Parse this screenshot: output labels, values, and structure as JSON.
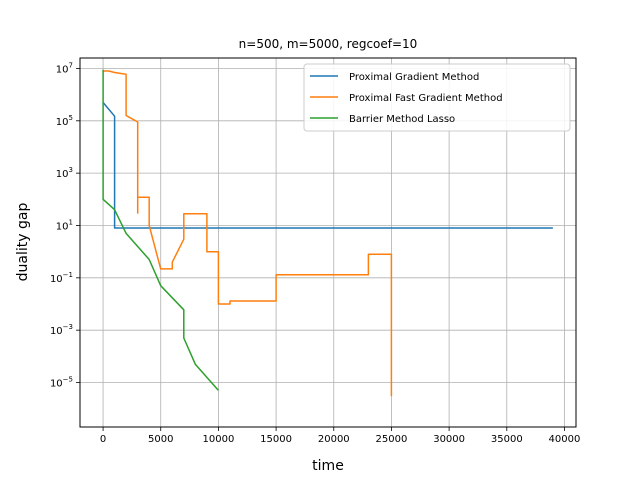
{
  "chart_data": {
    "type": "line",
    "title": "n=500, m=5000, regcoef=10",
    "xlabel": "time",
    "ylabel": "duality gap",
    "xlim": [
      -2000,
      41000
    ],
    "ylim_log10": [
      -6.7,
      7.4
    ],
    "yscale": "log",
    "grid": true,
    "legend_position": "top-right",
    "x_ticks": [
      0,
      5000,
      10000,
      15000,
      20000,
      25000,
      30000,
      35000,
      40000
    ],
    "x_tick_labels": [
      "0",
      "5000",
      "10000",
      "15000",
      "20000",
      "25000",
      "30000",
      "35000",
      "40000"
    ],
    "y_ticks_log10": [
      -5,
      -3,
      -1,
      1,
      3,
      5,
      7
    ],
    "y_tick_labels": [
      {
        "base": "10",
        "exp": "−5"
      },
      {
        "base": "10",
        "exp": "−3"
      },
      {
        "base": "10",
        "exp": "−1"
      },
      {
        "base": "10",
        "exp": "1"
      },
      {
        "base": "10",
        "exp": "3"
      },
      {
        "base": "10",
        "exp": "5"
      },
      {
        "base": "10",
        "exp": "7"
      }
    ],
    "series": [
      {
        "name": "Proximal Gradient Method",
        "color": "#1f77b4",
        "x": [
          0,
          1000,
          1000,
          2000,
          39000
        ],
        "y": [
          500000,
          150000,
          8,
          8,
          8
        ]
      },
      {
        "name": "Proximal Fast Gradient Method",
        "color": "#ff7f0e",
        "x": [
          0,
          500,
          1000,
          1000,
          2000,
          2000,
          3000,
          3000,
          3000,
          3000,
          4000,
          4000,
          5000,
          6000,
          6000,
          7000,
          7000,
          7000,
          9000,
          9000,
          10000,
          10000,
          11000,
          11000,
          15000,
          15000,
          23000,
          23000,
          25000,
          25000
        ],
        "y": [
          8000000,
          8000000,
          7000000,
          7000000,
          6000000,
          160000,
          90000,
          30,
          30,
          120,
          120,
          10,
          0.22,
          0.22,
          0.4,
          3,
          3,
          28,
          28,
          1,
          1,
          0.01,
          0.01,
          0.013,
          0.013,
          0.13,
          0.13,
          0.8,
          0.8,
          3e-06
        ]
      },
      {
        "name": "Barrier Method Lasso",
        "color": "#2ca02c",
        "x": [
          0,
          0,
          1000,
          2000,
          4000,
          5000,
          7000,
          7000,
          8000,
          10000
        ],
        "y": [
          9000000,
          100,
          40,
          5,
          0.5,
          0.05,
          0.006,
          0.0005,
          5e-05,
          5e-06
        ]
      }
    ]
  }
}
